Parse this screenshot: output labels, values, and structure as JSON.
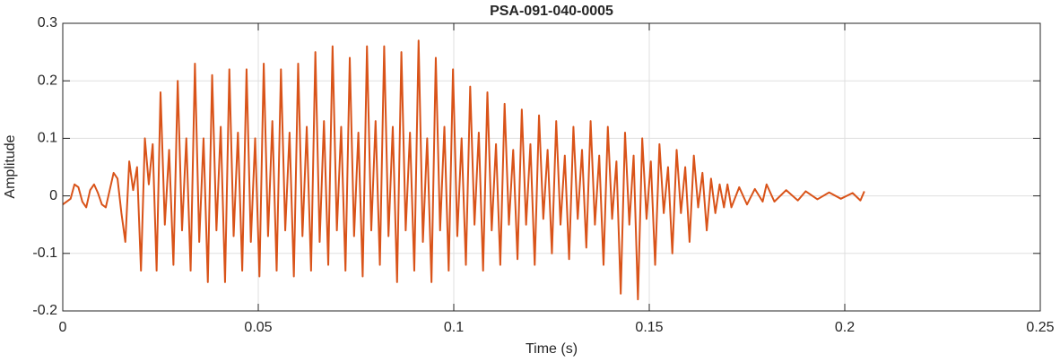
{
  "chart_data": {
    "type": "line",
    "title": "PSA-091-040-0005",
    "xlabel": "Time (s)",
    "ylabel": "Amplitude",
    "color": "#D95319",
    "grid": true,
    "xlim": [
      0,
      0.25
    ],
    "xticks": [
      0,
      0.05,
      0.1,
      0.15,
      0.2,
      0.25
    ],
    "ylim": [
      -0.2,
      0.3
    ],
    "yticks": [
      -0.2,
      -0.1,
      0,
      0.1,
      0.2,
      0.3
    ],
    "x": [
      0,
      0.002,
      0.003,
      0.004,
      0.005,
      0.006,
      0.007,
      0.008,
      0.009,
      0.01,
      0.011,
      0.012,
      0.013,
      0.014,
      0.015,
      0.016,
      0.017,
      0.018,
      0.019,
      0.02,
      0.021,
      0.022,
      0.023,
      0.024,
      0.025,
      0.0261,
      0.0272,
      0.0283,
      0.0294,
      0.0305,
      0.0316,
      0.0327,
      0.0338,
      0.0349,
      0.036,
      0.0371,
      0.0382,
      0.0393,
      0.0404,
      0.0415,
      0.0426,
      0.0437,
      0.0448,
      0.0459,
      0.047,
      0.0481,
      0.0492,
      0.0503,
      0.0514,
      0.0525,
      0.0536,
      0.0547,
      0.0558,
      0.0569,
      0.058,
      0.0591,
      0.0602,
      0.0613,
      0.0624,
      0.0635,
      0.0646,
      0.0657,
      0.0668,
      0.0679,
      0.069,
      0.0701,
      0.0712,
      0.0723,
      0.0734,
      0.0745,
      0.0756,
      0.0767,
      0.0778,
      0.0789,
      0.08,
      0.0811,
      0.0822,
      0.0833,
      0.0844,
      0.0855,
      0.0866,
      0.0877,
      0.0888,
      0.0899,
      0.091,
      0.0921,
      0.0932,
      0.0943,
      0.0954,
      0.0965,
      0.0976,
      0.0987,
      0.0998,
      0.1009,
      0.102,
      0.1031,
      0.1042,
      0.1053,
      0.1064,
      0.1075,
      0.1086,
      0.1097,
      0.1108,
      0.1119,
      0.113,
      0.1141,
      0.1152,
      0.1163,
      0.1174,
      0.1185,
      0.1196,
      0.1207,
      0.1218,
      0.1229,
      0.124,
      0.1251,
      0.1262,
      0.1273,
      0.1284,
      0.1295,
      0.1306,
      0.1317,
      0.1328,
      0.1339,
      0.135,
      0.1361,
      0.1372,
      0.1383,
      0.1394,
      0.1405,
      0.1416,
      0.1427,
      0.1438,
      0.1449,
      0.146,
      0.1471,
      0.1482,
      0.1493,
      0.1504,
      0.1515,
      0.1526,
      0.1537,
      0.1548,
      0.1559,
      0.157,
      0.1581,
      0.1592,
      0.1603,
      0.1614,
      0.1625,
      0.1636,
      0.1647,
      0.1658,
      0.1669,
      0.168,
      0.1691,
      0.17,
      0.171,
      0.173,
      0.175,
      0.177,
      0.179,
      0.18,
      0.182,
      0.185,
      0.188,
      0.19,
      0.193,
      0.196,
      0.199,
      0.202,
      0.204,
      0.205
    ],
    "values": [
      -0.015,
      -0.005,
      0.02,
      0.015,
      -0.01,
      -0.02,
      0.01,
      0.02,
      0.005,
      -0.015,
      -0.02,
      0.01,
      0.04,
      0.03,
      -0.03,
      -0.08,
      0.06,
      0.01,
      0.05,
      -0.13,
      0.1,
      0.02,
      0.09,
      -0.13,
      0.18,
      -0.05,
      0.08,
      -0.12,
      0.2,
      -0.06,
      0.1,
      -0.13,
      0.23,
      -0.08,
      0.1,
      -0.15,
      0.21,
      -0.06,
      0.12,
      -0.15,
      0.22,
      -0.07,
      0.11,
      -0.13,
      0.22,
      -0.08,
      0.1,
      -0.14,
      0.23,
      -0.07,
      0.13,
      -0.13,
      0.22,
      -0.06,
      0.11,
      -0.14,
      0.23,
      -0.07,
      0.12,
      -0.13,
      0.25,
      -0.08,
      0.13,
      -0.12,
      0.26,
      -0.06,
      0.12,
      -0.13,
      0.24,
      -0.07,
      0.11,
      -0.14,
      0.26,
      -0.06,
      0.13,
      -0.12,
      0.26,
      -0.07,
      0.12,
      -0.15,
      0.25,
      -0.06,
      0.11,
      -0.13,
      0.27,
      -0.08,
      0.1,
      -0.15,
      0.24,
      -0.06,
      0.12,
      -0.13,
      0.22,
      -0.07,
      0.1,
      -0.12,
      0.19,
      -0.05,
      0.11,
      -0.13,
      0.18,
      -0.06,
      0.09,
      -0.12,
      0.16,
      -0.05,
      0.08,
      -0.11,
      0.15,
      -0.05,
      0.09,
      -0.12,
      0.14,
      -0.04,
      0.08,
      -0.1,
      0.13,
      -0.05,
      0.07,
      -0.11,
      0.12,
      -0.04,
      0.08,
      -0.09,
      0.13,
      -0.05,
      0.07,
      -0.12,
      0.12,
      -0.04,
      0.06,
      -0.17,
      0.11,
      -0.05,
      0.07,
      -0.18,
      0.1,
      -0.04,
      0.06,
      -0.12,
      0.09,
      -0.03,
      0.05,
      -0.1,
      0.08,
      -0.03,
      0.05,
      -0.08,
      0.07,
      -0.02,
      0.04,
      -0.06,
      0.03,
      -0.03,
      0.02,
      -0.02,
      0.02,
      -0.02,
      0.015,
      -0.015,
      0.012,
      -0.01,
      0.02,
      -0.01,
      0.01,
      -0.008,
      0.008,
      -0.006,
      0.006,
      -0.005,
      0.005,
      -0.008,
      0.008
    ]
  }
}
